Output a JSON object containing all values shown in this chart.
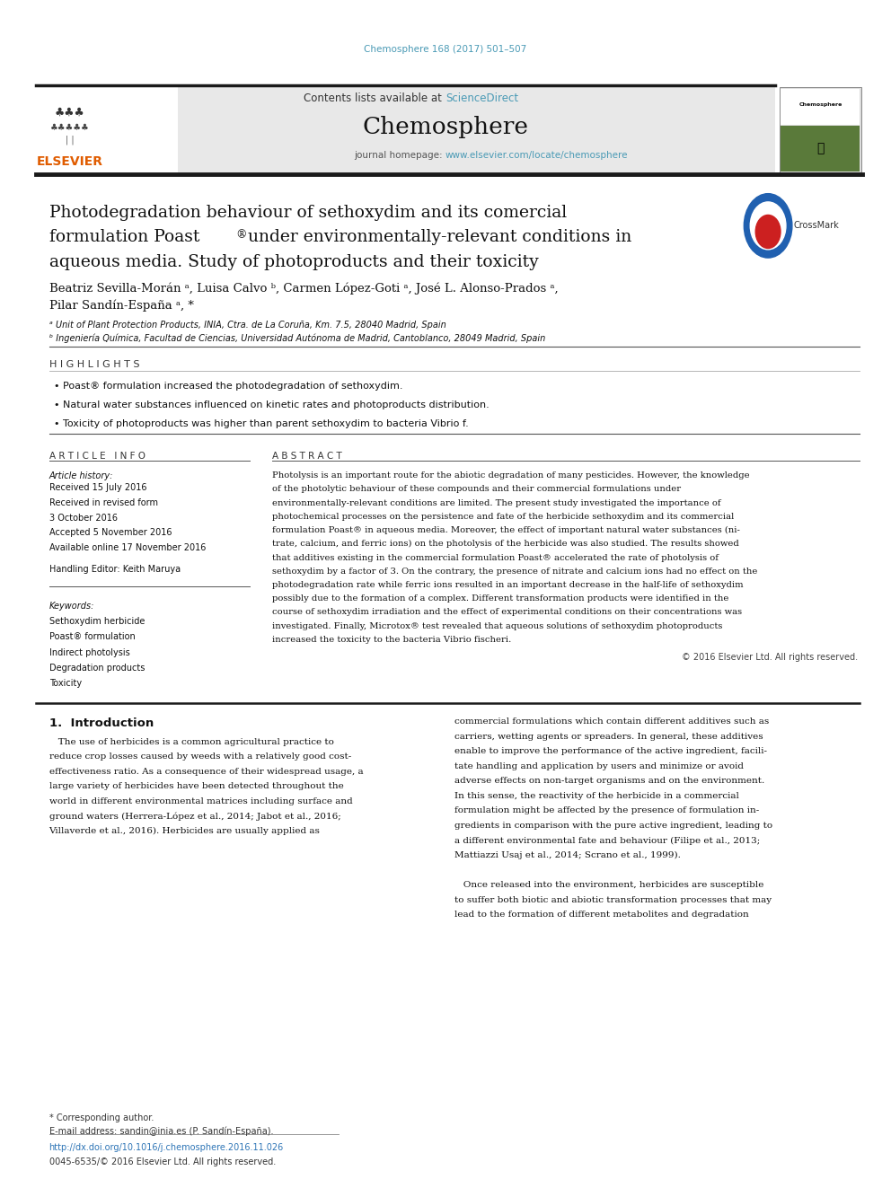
{
  "page_width": 9.92,
  "page_height": 13.23,
  "bg_color": "#ffffff",
  "citation_text": "Chemosphere 168 (2017) 501–507",
  "citation_color": "#4a9ab5",
  "header_bg": "#e8e8e8",
  "elsevier_color": "#e05c00",
  "title_line1": "Photodegradation behaviour of sethoxydim and its comercial",
  "title_line2a": "formulation Poast",
  "title_line2b": "®",
  "title_line2c": " under environmentally-relevant conditions in",
  "title_line3": "aqueous media. Study of photoproducts and their toxicity",
  "authors_line1": "Beatriz Sevilla-Morán ᵃ, Luisa Calvo ᵇ, Carmen López-Goti ᵃ, José L. Alonso-Prados ᵃ,",
  "authors_line2": "Pilar Sandín-España ᵃ, *",
  "affil_a": "ᵃ Unit of Plant Protection Products, INIA, Ctra. de La Coruña, Km. 7.5, 28040 Madrid, Spain",
  "affil_b": "ᵇ Ingeniería Química, Facultad de Ciencias, Universidad Autónoma de Madrid, Cantoblanco, 28049 Madrid, Spain",
  "highlights_title": "H I G H L I G H T S",
  "highlights": [
    "Poast® formulation increased the photodegradation of sethoxydim.",
    "Natural water substances influenced on kinetic rates and photoproducts distribution.",
    "Toxicity of photoproducts was higher than parent sethoxydim to bacteria Vibrio f."
  ],
  "article_info_title": "A R T I C L E   I N F O",
  "article_history_label": "Article history:",
  "article_history": [
    "Received 15 July 2016",
    "Received in revised form",
    "3 October 2016",
    "Accepted 5 November 2016",
    "Available online 17 November 2016"
  ],
  "handling_editor": "Handling Editor: Keith Maruya",
  "keywords_label": "Keywords:",
  "keywords": [
    "Sethoxydim herbicide",
    "Poast® formulation",
    "Indirect photolysis",
    "Degradation products",
    "Toxicity"
  ],
  "abstract_title": "A B S T R A C T",
  "abstract_lines": [
    "Photolysis is an important route for the abiotic degradation of many pesticides. However, the knowledge",
    "of the photolytic behaviour of these compounds and their commercial formulations under",
    "environmentally-relevant conditions are limited. The present study investigated the importance of",
    "photochemical processes on the persistence and fate of the herbicide sethoxydim and its commercial",
    "formulation Poast® in aqueous media. Moreover, the effect of important natural water substances (ni-",
    "trate, calcium, and ferric ions) on the photolysis of the herbicide was also studied. The results showed",
    "that additives existing in the commercial formulation Poast® accelerated the rate of photolysis of",
    "sethoxydim by a factor of 3. On the contrary, the presence of nitrate and calcium ions had no effect on the",
    "photodegradation rate while ferric ions resulted in an important decrease in the half-life of sethoxydim",
    "possibly due to the formation of a complex. Different transformation products were identified in the",
    "course of sethoxydim irradiation and the effect of experimental conditions on their concentrations was",
    "investigated. Finally, Microtox® test revealed that aqueous solutions of sethoxydim photoproducts",
    "increased the toxicity to the bacteria Vibrio fischeri."
  ],
  "copyright_text": "© 2016 Elsevier Ltd. All rights reserved.",
  "intro_title": "1.  Introduction",
  "intro_left_lines": [
    "   The use of herbicides is a common agricultural practice to",
    "reduce crop losses caused by weeds with a relatively good cost-",
    "effectiveness ratio. As a consequence of their widespread usage, a",
    "large variety of herbicides have been detected throughout the",
    "world in different environmental matrices including surface and",
    "ground waters (Herrera-López et al., 2014; Jabot et al., 2016;",
    "Villaverde et al., 2016). Herbicides are usually applied as"
  ],
  "intro_right_lines": [
    "commercial formulations which contain different additives such as",
    "carriers, wetting agents or spreaders. In general, these additives",
    "enable to improve the performance of the active ingredient, facili-",
    "tate handling and application by users and minimize or avoid",
    "adverse effects on non-target organisms and on the environment.",
    "In this sense, the reactivity of the herbicide in a commercial",
    "formulation might be affected by the presence of formulation in-",
    "gredients in comparison with the pure active ingredient, leading to",
    "a different environmental fate and behaviour (Filipe et al., 2013;",
    "Mattiazzi Usaj et al., 2014; Scrano et al., 1999).",
    "",
    "   Once released into the environment, herbicides are susceptible",
    "to suffer both biotic and abiotic transformation processes that may",
    "lead to the formation of different metabolites and degradation"
  ],
  "footnote1": "* Corresponding author.",
  "footnote2": "E-mail address: sandin@inia.es (P. Sandín-España).",
  "doi_text": "http://dx.doi.org/10.1016/j.chemosphere.2016.11.026",
  "issn_text": "0045-6535/© 2016 Elsevier Ltd. All rights reserved.",
  "link_color": "#2e75b6",
  "teal_color": "#4a9ab5"
}
